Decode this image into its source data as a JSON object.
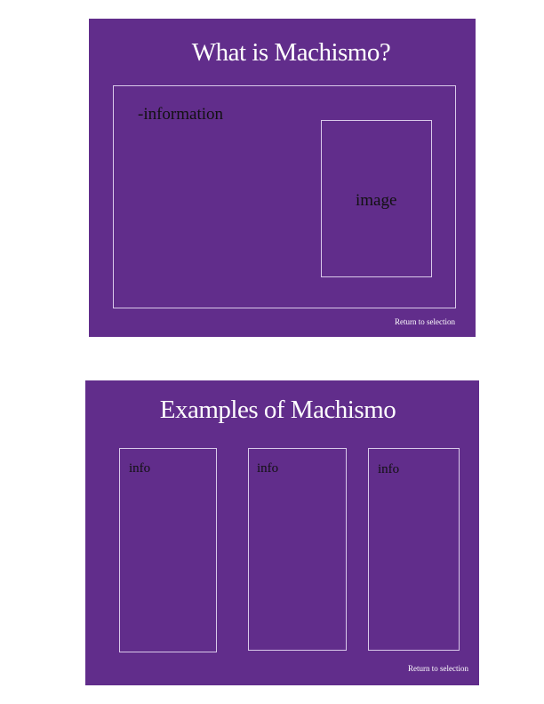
{
  "colors": {
    "slide_background": "#612d8b",
    "frame_border": "#d9c9ea",
    "title_text": "#ffffff",
    "body_text": "#111111"
  },
  "slide1": {
    "title": "What is Machismo?",
    "information_text": "-information",
    "image_label": "image",
    "return_link": "Return to selection"
  },
  "slide2": {
    "title": "Examples of Machismo",
    "info_boxes": [
      "info",
      "info",
      "info"
    ],
    "return_link": "Return to selection"
  }
}
